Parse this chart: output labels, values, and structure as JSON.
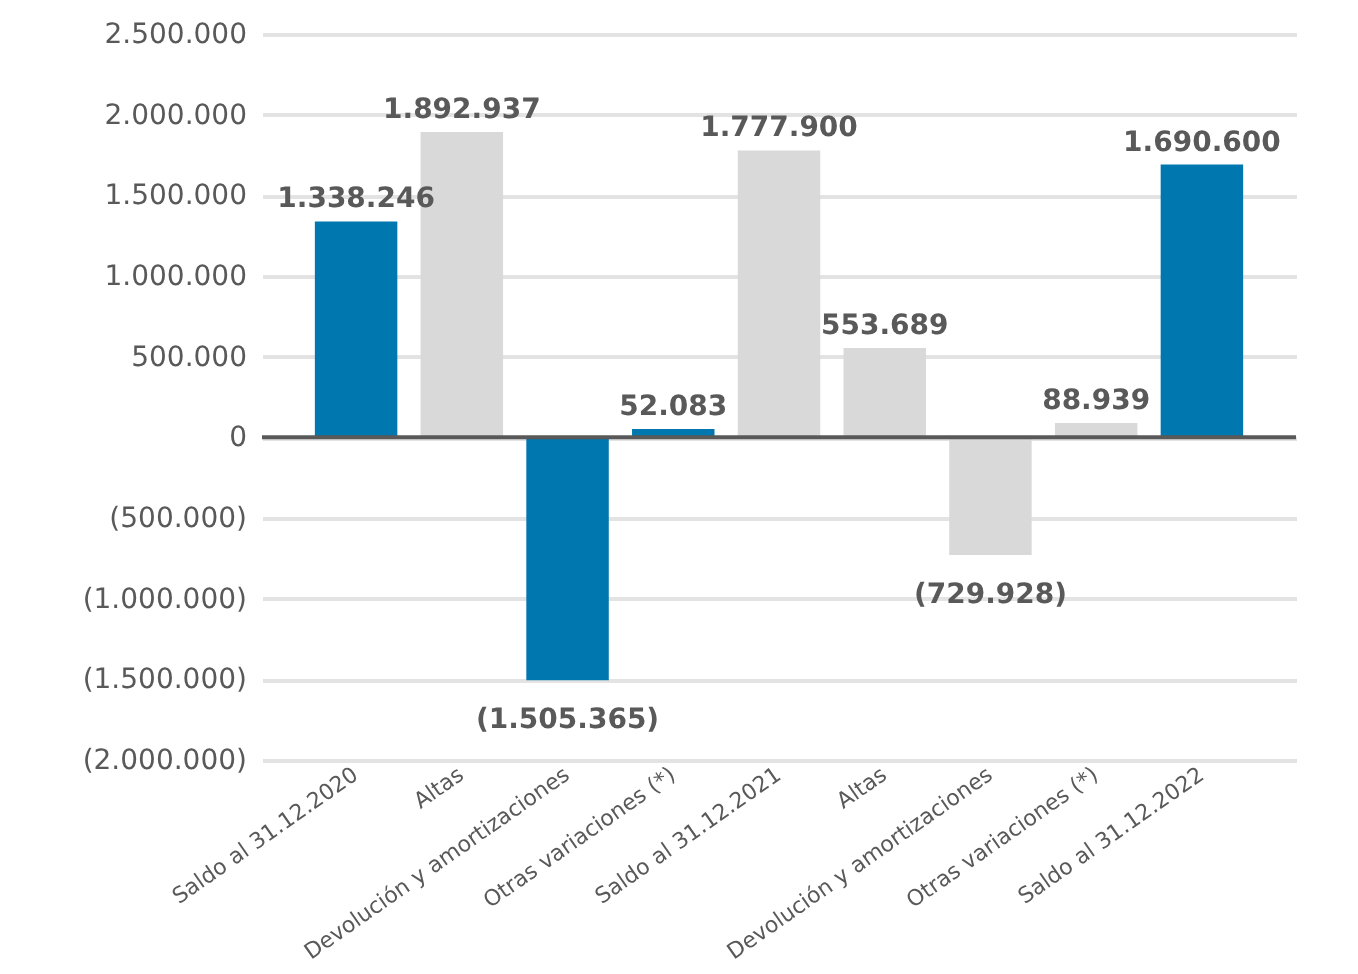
{
  "chart_data": {
    "type": "bar",
    "categories": [
      "Saldo al 31.12.2020",
      "Altas",
      "Devolución y amortizaciones",
      "Otras variaciones (*)",
      "Saldo al 31.12.2021",
      "Altas",
      "Devolución y amortizaciones",
      "Otras variaciones (*)",
      "Saldo al 31.12.2022"
    ],
    "values": [
      1338246,
      1892937,
      -1505365,
      52083,
      1777900,
      553689,
      -729928,
      88939,
      1690600
    ],
    "colors": [
      "#0077ae",
      "#d9d9d9",
      "#0077ae",
      "#0077ae",
      "#d9d9d9",
      "#d9d9d9",
      "#d9d9d9",
      "#d9d9d9",
      "#0077ae"
    ],
    "value_labels": [
      "1.338.246",
      "1.892.937",
      "(1.505.365)",
      "52.083",
      "1.777.900",
      "553.689",
      "(729.928)",
      "88.939",
      "1.690.600"
    ],
    "ylim": [
      -2000000,
      2500000
    ],
    "yticks": [
      {
        "value": -2000000,
        "label": "(2.000.000)"
      },
      {
        "value": -1500000,
        "label": "(1.500.000)"
      },
      {
        "value": -1000000,
        "label": "(1.000.000)"
      },
      {
        "value": -500000,
        "label": "(500.000)"
      },
      0,
      {
        "value": 500000,
        "label": "500.000"
      },
      {
        "value": 1000000,
        "label": "1.000.000"
      },
      {
        "value": 1500000,
        "label": "1.500.000"
      },
      {
        "value": 2000000,
        "label": "2.000.000"
      },
      {
        "value": 2500000,
        "label": "2.500.000"
      }
    ],
    "ref_lines": [
      {
        "axis": "y",
        "value": 0,
        "color": "#595959"
      }
    ],
    "grid": "y"
  }
}
